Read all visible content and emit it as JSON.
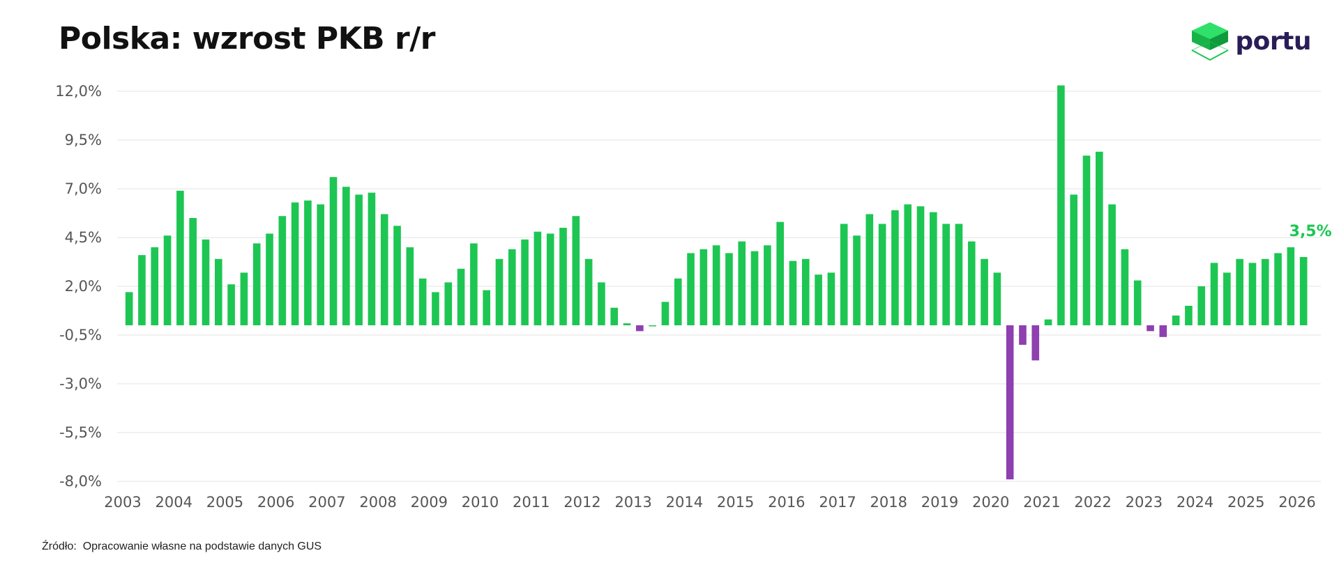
{
  "title": "Polska: wzrost PKB r/r",
  "logo": {
    "text": "portu"
  },
  "source": "Źródło:  Opracowanie własne na podstawie danych GUS",
  "colors": {
    "positive": "#1dc653",
    "negative": "#8e3fb0",
    "grid": "#e3e3e3",
    "text": "#555555",
    "logo_text": "#2a1d57"
  },
  "chart_data": {
    "type": "bar",
    "title": "Polska: wzrost PKB r/r",
    "xlabel": "",
    "ylabel": "",
    "ylim": [
      -8.0,
      12.0
    ],
    "y_ticks": [
      "12,0%",
      "9,5%",
      "7,0%",
      "4,5%",
      "2,0%",
      "-0,5%",
      "-3,0%",
      "-5,5%",
      "-8,0%"
    ],
    "y_tick_values": [
      12.0,
      9.5,
      7.0,
      4.5,
      2.0,
      -0.5,
      -3.0,
      -5.5,
      -8.0
    ],
    "x_ticks": [
      "2003",
      "2004",
      "2005",
      "2006",
      "2007",
      "2008",
      "2009",
      "2010",
      "2011",
      "2012",
      "2013",
      "2014",
      "2015",
      "2016",
      "2017",
      "2018",
      "2019",
      "2020",
      "2021",
      "2022",
      "2023",
      "2024",
      "2025",
      "2026"
    ],
    "frequency": "quarterly",
    "grid": true,
    "legend": "none",
    "series": [
      {
        "values": [
          1.7,
          3.6,
          4.0,
          4.6,
          6.9,
          5.5,
          4.4,
          3.4,
          2.1,
          2.7,
          4.2,
          4.7,
          5.6,
          6.3,
          6.4,
          6.2,
          7.6,
          7.1,
          6.7,
          6.8,
          5.7,
          5.1,
          4.0,
          2.4,
          1.7,
          2.2,
          2.9,
          4.2,
          1.8,
          3.4,
          3.9,
          4.4,
          4.8,
          4.7,
          5.0,
          5.6,
          3.4,
          2.2,
          0.9,
          0.1,
          -0.3,
          0.0,
          1.2,
          2.4,
          3.7,
          3.9,
          4.1,
          3.7,
          4.3,
          3.8,
          4.1,
          5.3,
          3.3,
          3.4,
          2.6,
          2.7,
          5.2,
          4.6,
          5.7,
          5.2,
          5.9,
          6.2,
          6.1,
          5.8,
          5.2,
          5.2,
          4.3,
          3.4,
          2.7,
          -7.9,
          -1.0,
          -1.8,
          0.3,
          12.3,
          6.7,
          8.7,
          8.9,
          6.2,
          3.9,
          2.3,
          -0.3,
          -0.6,
          0.5,
          1.0,
          2.0,
          3.2,
          2.7,
          3.4,
          3.2,
          3.4,
          3.7,
          4.0,
          3.5
        ],
        "last_value_label": "3,5%"
      }
    ]
  }
}
